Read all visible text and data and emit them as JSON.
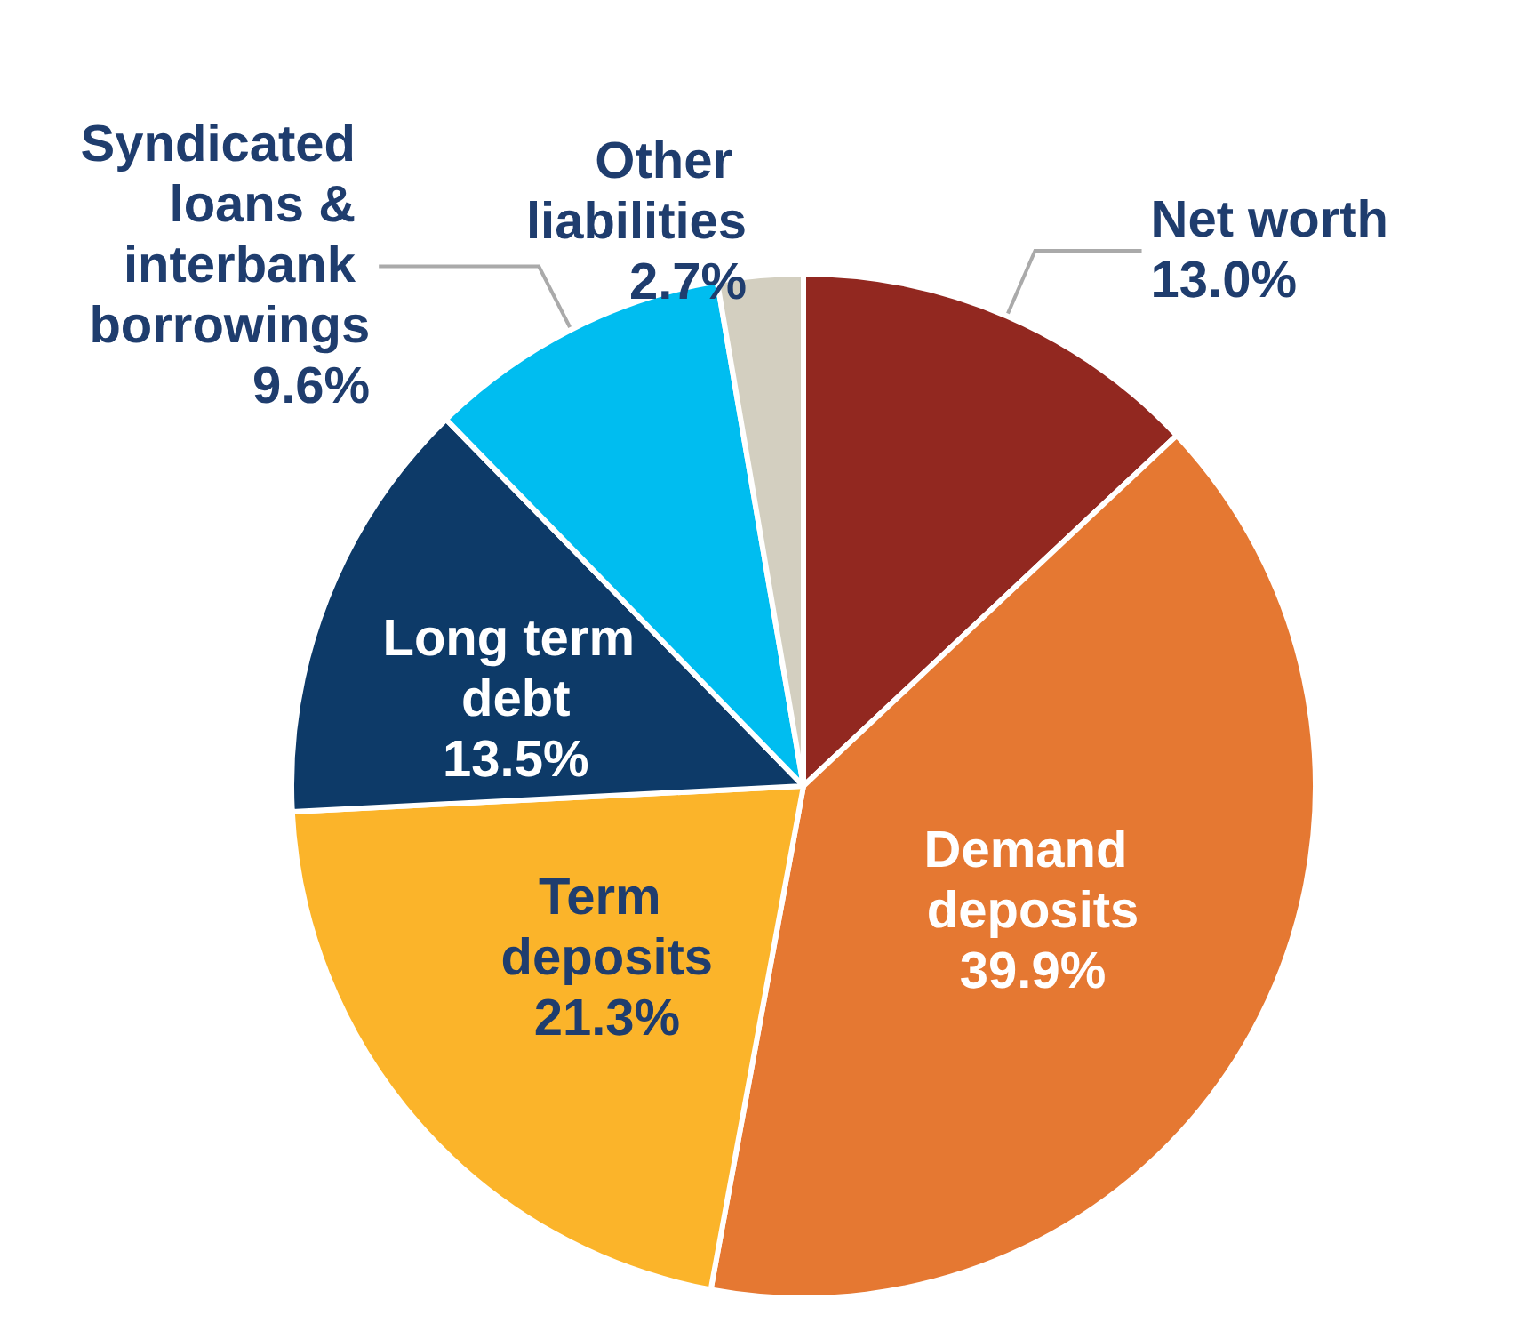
{
  "chart_data": {
    "type": "pie",
    "categories": [
      "Net worth",
      "Demand deposits",
      "Term deposits",
      "Long term debt",
      "Syndicated loans & interbank borrowings",
      "Other liabilities"
    ],
    "values": [
      13.0,
      39.9,
      21.3,
      13.5,
      9.6,
      2.7
    ],
    "colors": [
      "#922820",
      "#e57832",
      "#fbb42a",
      "#0d3a68",
      "#00bdf0",
      "#d3cfc0"
    ],
    "value_labels": [
      "13.0%",
      "39.9%",
      "21.3%",
      "13.5%",
      "9.6%",
      "2.7%"
    ],
    "legend": false
  }
}
